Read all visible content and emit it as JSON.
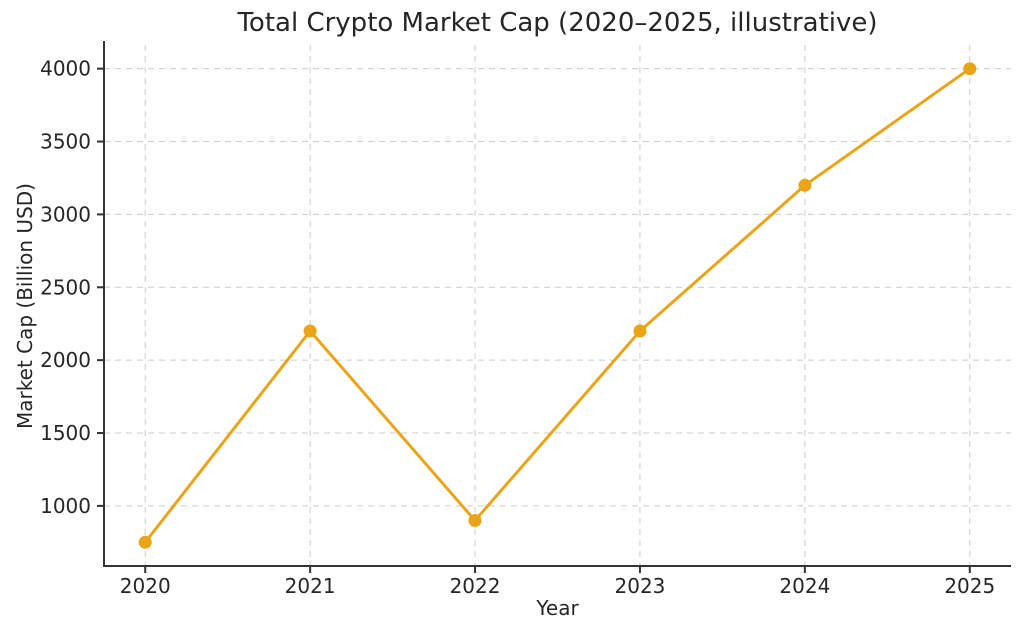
{
  "chart_data": {
    "type": "line",
    "title": "Total Crypto Market Cap (2020–2025, illustrative)",
    "xlabel": "Year",
    "ylabel": "Market Cap (Billion USD)",
    "x": [
      2020,
      2021,
      2022,
      2023,
      2024,
      2025
    ],
    "values": [
      750,
      2200,
      900,
      2200,
      3200,
      4000
    ],
    "xticks": [
      2020,
      2021,
      2022,
      2023,
      2024,
      2025
    ],
    "yticks": [
      1000,
      1500,
      2000,
      2500,
      3000,
      3500,
      4000
    ],
    "xlim": [
      2019.75,
      2025.25
    ],
    "ylim": [
      587.5,
      4162.5
    ],
    "grid": true,
    "grid_style": "dashed",
    "legend": "none",
    "marker": "circle",
    "colors": {
      "line": "#E9A418",
      "marker": "#E9A418",
      "grid": "#cccccc",
      "axis": "#333333",
      "text": "#262626",
      "background": "#ffffff"
    }
  }
}
